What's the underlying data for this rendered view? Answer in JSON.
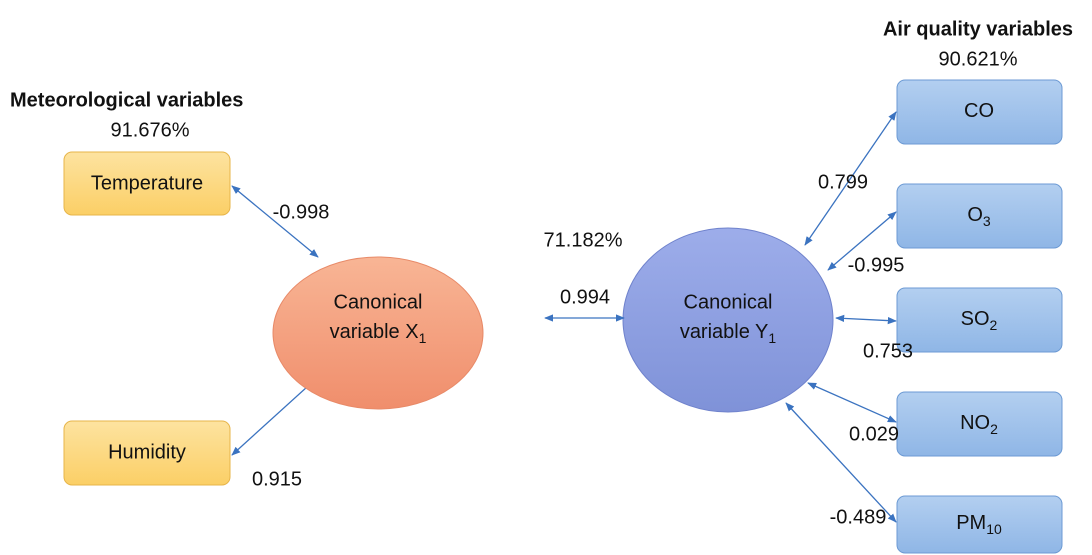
{
  "left_group": {
    "title": "Meteorological variables",
    "variance": "91.676%",
    "nodes": [
      {
        "label": {
          "text": "Temperature"
        },
        "coefficient": "-0.998"
      },
      {
        "label": {
          "text": "Humidity"
        },
        "coefficient": "0.915"
      }
    ]
  },
  "center": {
    "x_variable": {
      "line1": "Canonical",
      "line2": "variable X",
      "sub": "1"
    },
    "y_variable": {
      "line1": "Canonical",
      "line2": "variable Y",
      "sub": "1"
    },
    "correlation": "0.994",
    "variance": "71.182%"
  },
  "right_group": {
    "title": "Air quality variables",
    "variance": "90.621%",
    "nodes": [
      {
        "label": {
          "text": "CO"
        },
        "coefficient": "0.799"
      },
      {
        "label": {
          "text": "O",
          "sub": "3"
        },
        "coefficient": "-0.995"
      },
      {
        "label": {
          "text": "SO",
          "sub": "2"
        },
        "coefficient": "0.753"
      },
      {
        "label": {
          "text": "NO",
          "sub": "2"
        },
        "coefficient": "0.029"
      },
      {
        "label": {
          "text": "PM",
          "sub": "10"
        },
        "coefficient": "-0.489"
      }
    ]
  }
}
